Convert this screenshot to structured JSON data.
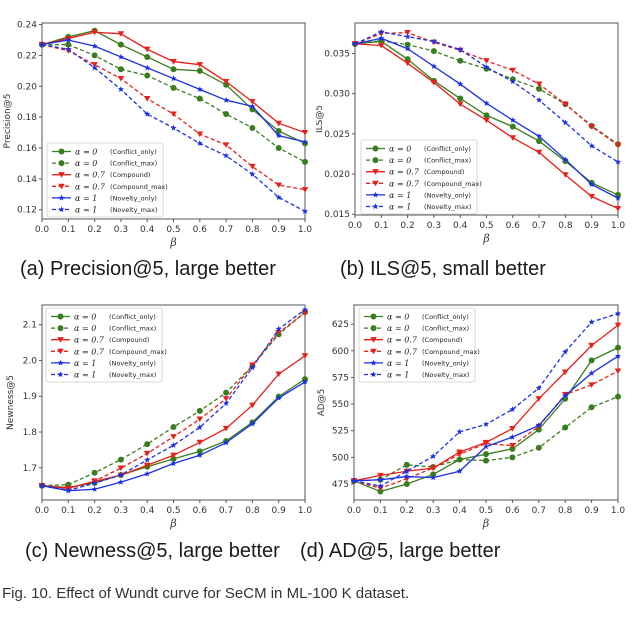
{
  "figure_caption": "Fig. 10. Effect of Wundt curve for SeCM in ML-100 K dataset.",
  "legend_labels": [
    {
      "alpha": "α = 0",
      "name": "(Conflict_only)"
    },
    {
      "alpha": "α = 0",
      "name": "(Conflict_max)"
    },
    {
      "alpha": "α = 0.7",
      "name": "(Compound)"
    },
    {
      "alpha": "α = 0.7",
      "name": "(Compound_max)"
    },
    {
      "alpha": "α = 1",
      "name": "(Novelty_only)"
    },
    {
      "alpha": "α = 1",
      "name": "(Novelty_max)"
    }
  ],
  "series_styles": [
    {
      "color": "#3a7d1e",
      "dash": false,
      "marker": "circle"
    },
    {
      "color": "#3a7d1e",
      "dash": true,
      "marker": "circle"
    },
    {
      "color": "#e8201a",
      "dash": false,
      "marker": "triangle-down"
    },
    {
      "color": "#e8201a",
      "dash": true,
      "marker": "triangle-down"
    },
    {
      "color": "#1a2fe8",
      "dash": false,
      "marker": "star"
    },
    {
      "color": "#1a2fe8",
      "dash": true,
      "marker": "star"
    }
  ],
  "chart_data": [
    {
      "type": "line",
      "caption": "(a) Precision@5, large better",
      "title": "",
      "xlabel": "β",
      "ylabel": "Precision@5",
      "x": [
        0.0,
        0.1,
        0.2,
        0.3,
        0.4,
        0.5,
        0.6,
        0.7,
        0.8,
        0.9,
        1.0
      ],
      "xticks": [
        "0.0",
        "0.1",
        "0.2",
        "0.3",
        "0.4",
        "0.5",
        "0.6",
        "0.7",
        "0.8",
        "0.9",
        "1.0"
      ],
      "xlim": [
        0.0,
        1.0
      ],
      "ylim": [
        0.114,
        0.241
      ],
      "yticks": [
        0.12,
        0.14,
        0.16,
        0.18,
        0.2,
        0.22,
        0.24
      ],
      "ytick_labels": [
        "0.12",
        "0.14",
        "0.16",
        "0.18",
        "0.20",
        "0.22",
        "0.24"
      ],
      "legend": "bottom-left",
      "grid": false,
      "series": [
        {
          "name": "α = 0 (Conflict_only)",
          "values": [
            0.227,
            0.232,
            0.236,
            0.227,
            0.219,
            0.211,
            0.21,
            0.201,
            0.185,
            0.171,
            0.163
          ]
        },
        {
          "name": "α = 0 (Conflict_max)",
          "values": [
            0.227,
            0.227,
            0.22,
            0.211,
            0.207,
            0.199,
            0.192,
            0.182,
            0.173,
            0.16,
            0.151
          ]
        },
        {
          "name": "α = 0.7 (Compound)",
          "values": [
            0.227,
            0.231,
            0.235,
            0.234,
            0.224,
            0.216,
            0.214,
            0.203,
            0.19,
            0.176,
            0.17
          ]
        },
        {
          "name": "α = 0.7 (Compound_max)",
          "values": [
            0.227,
            0.223,
            0.214,
            0.205,
            0.192,
            0.182,
            0.169,
            0.162,
            0.148,
            0.136,
            0.133
          ]
        },
        {
          "name": "α = 1 (Novelty_only)",
          "values": [
            0.227,
            0.23,
            0.226,
            0.219,
            0.212,
            0.205,
            0.198,
            0.191,
            0.187,
            0.168,
            0.164
          ]
        },
        {
          "name": "α = 1 (Novelty_max)",
          "values": [
            0.227,
            0.224,
            0.212,
            0.198,
            0.182,
            0.173,
            0.163,
            0.155,
            0.143,
            0.128,
            0.119
          ]
        }
      ]
    },
    {
      "type": "line",
      "caption": "(b) ILS@5, small better",
      "title": "",
      "xlabel": "β",
      "ylabel": "ILS@5",
      "x": [
        0.0,
        0.1,
        0.2,
        0.3,
        0.4,
        0.5,
        0.6,
        0.7,
        0.8,
        0.9,
        1.0
      ],
      "xticks": [
        "0.0",
        "0.1",
        "0.2",
        "0.3",
        "0.4",
        "0.5",
        "0.6",
        "0.7",
        "0.8",
        "0.9",
        "1.0"
      ],
      "xlim": [
        0.0,
        1.0
      ],
      "ylim": [
        0.0149,
        0.0388
      ],
      "yticks": [
        0.015,
        0.02,
        0.025,
        0.03,
        0.035
      ],
      "ytick_labels": [
        "0.015",
        "0.020",
        "0.025",
        "0.030",
        "0.035"
      ],
      "legend": "bottom-left",
      "grid": false,
      "series": [
        {
          "name": "α = 0 (Conflict_only)",
          "values": [
            0.0362,
            0.0365,
            0.0343,
            0.0316,
            0.0294,
            0.0273,
            0.0259,
            0.0241,
            0.0216,
            0.0189,
            0.0174
          ]
        },
        {
          "name": "α = 0 (Conflict_max)",
          "values": [
            0.0362,
            0.0366,
            0.0361,
            0.0353,
            0.0341,
            0.0331,
            0.0318,
            0.0306,
            0.0287,
            0.026,
            0.0237
          ]
        },
        {
          "name": "α = 0.7 (Compound)",
          "values": [
            0.0362,
            0.036,
            0.0338,
            0.0314,
            0.0287,
            0.0267,
            0.0245,
            0.0227,
            0.0199,
            0.0172,
            0.0157
          ]
        },
        {
          "name": "α = 0.7 (Compound_max)",
          "values": [
            0.0362,
            0.0375,
            0.0376,
            0.0364,
            0.0354,
            0.0341,
            0.0329,
            0.0312,
            0.0287,
            0.0259,
            0.0236
          ]
        },
        {
          "name": "α = 1 (Novelty_only)",
          "values": [
            0.0362,
            0.0369,
            0.0356,
            0.0334,
            0.0312,
            0.0288,
            0.0267,
            0.0247,
            0.0218,
            0.0187,
            0.017
          ]
        },
        {
          "name": "α = 1 (Novelty_max)",
          "values": [
            0.0362,
            0.0377,
            0.0371,
            0.0365,
            0.0355,
            0.0333,
            0.0315,
            0.0292,
            0.0264,
            0.0235,
            0.0215
          ]
        }
      ]
    },
    {
      "type": "line",
      "caption": "(c) Newness@5, large better",
      "title": "",
      "xlabel": "β",
      "ylabel": "Newness@5",
      "x": [
        0.0,
        0.1,
        0.2,
        0.3,
        0.4,
        0.5,
        0.6,
        0.7,
        0.8,
        0.9,
        1.0
      ],
      "xticks": [
        "0.0",
        "0.1",
        "0.2",
        "0.3",
        "0.4",
        "0.5",
        "0.6",
        "0.7",
        "0.8",
        "0.9",
        "1.0"
      ],
      "xlim": [
        0.0,
        1.0
      ],
      "ylim": [
        1.61,
        2.155
      ],
      "yticks": [
        1.7,
        1.8,
        1.9,
        2.0,
        2.1
      ],
      "ytick_labels": [
        "1.7",
        "1.8",
        "1.9",
        "2.0",
        "2.1"
      ],
      "legend": "top-left",
      "grid": false,
      "series": [
        {
          "name": "α = 0 (Conflict_only)",
          "values": [
            1.65,
            1.645,
            1.658,
            1.68,
            1.703,
            1.725,
            1.746,
            1.775,
            1.827,
            1.899,
            1.948
          ]
        },
        {
          "name": "α = 0 (Conflict_max)",
          "values": [
            1.65,
            1.653,
            1.686,
            1.723,
            1.766,
            1.814,
            1.859,
            1.91,
            1.985,
            2.073,
            2.135
          ]
        },
        {
          "name": "α = 0.7 (Compound)",
          "values": [
            1.65,
            1.643,
            1.662,
            1.679,
            1.707,
            1.735,
            1.771,
            1.81,
            1.875,
            1.962,
            2.013
          ]
        },
        {
          "name": "α = 0.7 (Compound_max)",
          "values": [
            1.65,
            1.642,
            1.663,
            1.699,
            1.74,
            1.787,
            1.836,
            1.893,
            1.987,
            2.078,
            2.133
          ]
        },
        {
          "name": "α = 1 (Novelty_only)",
          "values": [
            1.65,
            1.636,
            1.64,
            1.66,
            1.683,
            1.712,
            1.735,
            1.77,
            1.823,
            1.895,
            1.94
          ]
        },
        {
          "name": "α = 1 (Novelty_max)",
          "values": [
            1.65,
            1.637,
            1.657,
            1.68,
            1.722,
            1.763,
            1.813,
            1.88,
            1.98,
            2.088,
            2.142
          ]
        }
      ]
    },
    {
      "type": "line",
      "caption": "(d) AD@5, large better",
      "title": "",
      "xlabel": "β",
      "ylabel": "AD@5",
      "x": [
        0.0,
        0.1,
        0.2,
        0.3,
        0.4,
        0.5,
        0.6,
        0.7,
        0.8,
        0.9,
        1.0
      ],
      "xticks": [
        "0.0",
        "0.1",
        "0.2",
        "0.3",
        "0.4",
        "0.5",
        "0.6",
        "0.7",
        "0.8",
        "0.9",
        "1.0"
      ],
      "xlim": [
        0.0,
        1.0
      ],
      "ylim": [
        460,
        643
      ],
      "yticks": [
        475,
        500,
        525,
        550,
        575,
        600,
        625
      ],
      "ytick_labels": [
        "475",
        "500",
        "525",
        "550",
        "575",
        "600",
        "625"
      ],
      "legend": "top-left",
      "grid": false,
      "series": [
        {
          "name": "α = 0 (Conflict_only)",
          "values": [
            478,
            468,
            475,
            484,
            498,
            503,
            508,
            526,
            555,
            591,
            603
          ]
        },
        {
          "name": "α = 0 (Conflict_max)",
          "values": [
            478,
            479,
            493,
            491,
            498,
            497,
            500,
            509,
            528,
            547,
            557
          ]
        },
        {
          "name": "α = 0.7 (Compound)",
          "values": [
            478,
            483,
            487,
            490,
            505,
            514,
            527,
            555,
            580,
            605,
            624
          ]
        },
        {
          "name": "α = 0.7 (Compound_max)",
          "values": [
            478,
            471,
            480,
            490,
            503,
            513,
            511,
            529,
            559,
            568,
            581
          ]
        },
        {
          "name": "α = 1 (Novelty_only)",
          "values": [
            478,
            479,
            482,
            481,
            487,
            510,
            519,
            530,
            558,
            579,
            595
          ]
        },
        {
          "name": "α = 1 (Novelty_max)",
          "values": [
            478,
            473,
            487,
            501,
            524,
            531,
            545,
            565,
            599,
            627,
            635
          ]
        }
      ]
    }
  ]
}
